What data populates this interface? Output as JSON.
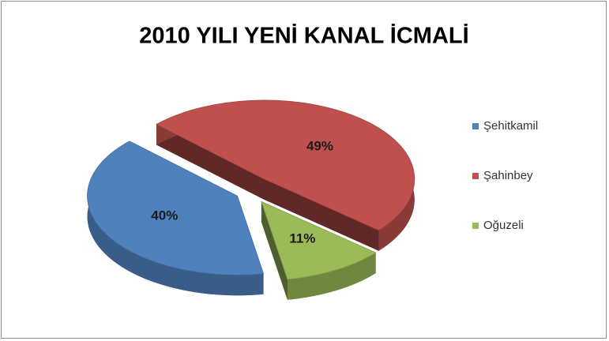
{
  "chart_data": {
    "type": "pie",
    "title": "2010 YILI YENİ KANAL İCMALİ",
    "categories": [
      "Şehitkamil",
      "Şahinbey",
      "Oğuzeli"
    ],
    "values": [
      40,
      49,
      11
    ],
    "value_labels": [
      "40%",
      "49%",
      "11%"
    ],
    "colors": [
      "#4f81bd",
      "#c0504d",
      "#9bbb59"
    ],
    "legend": "right"
  }
}
